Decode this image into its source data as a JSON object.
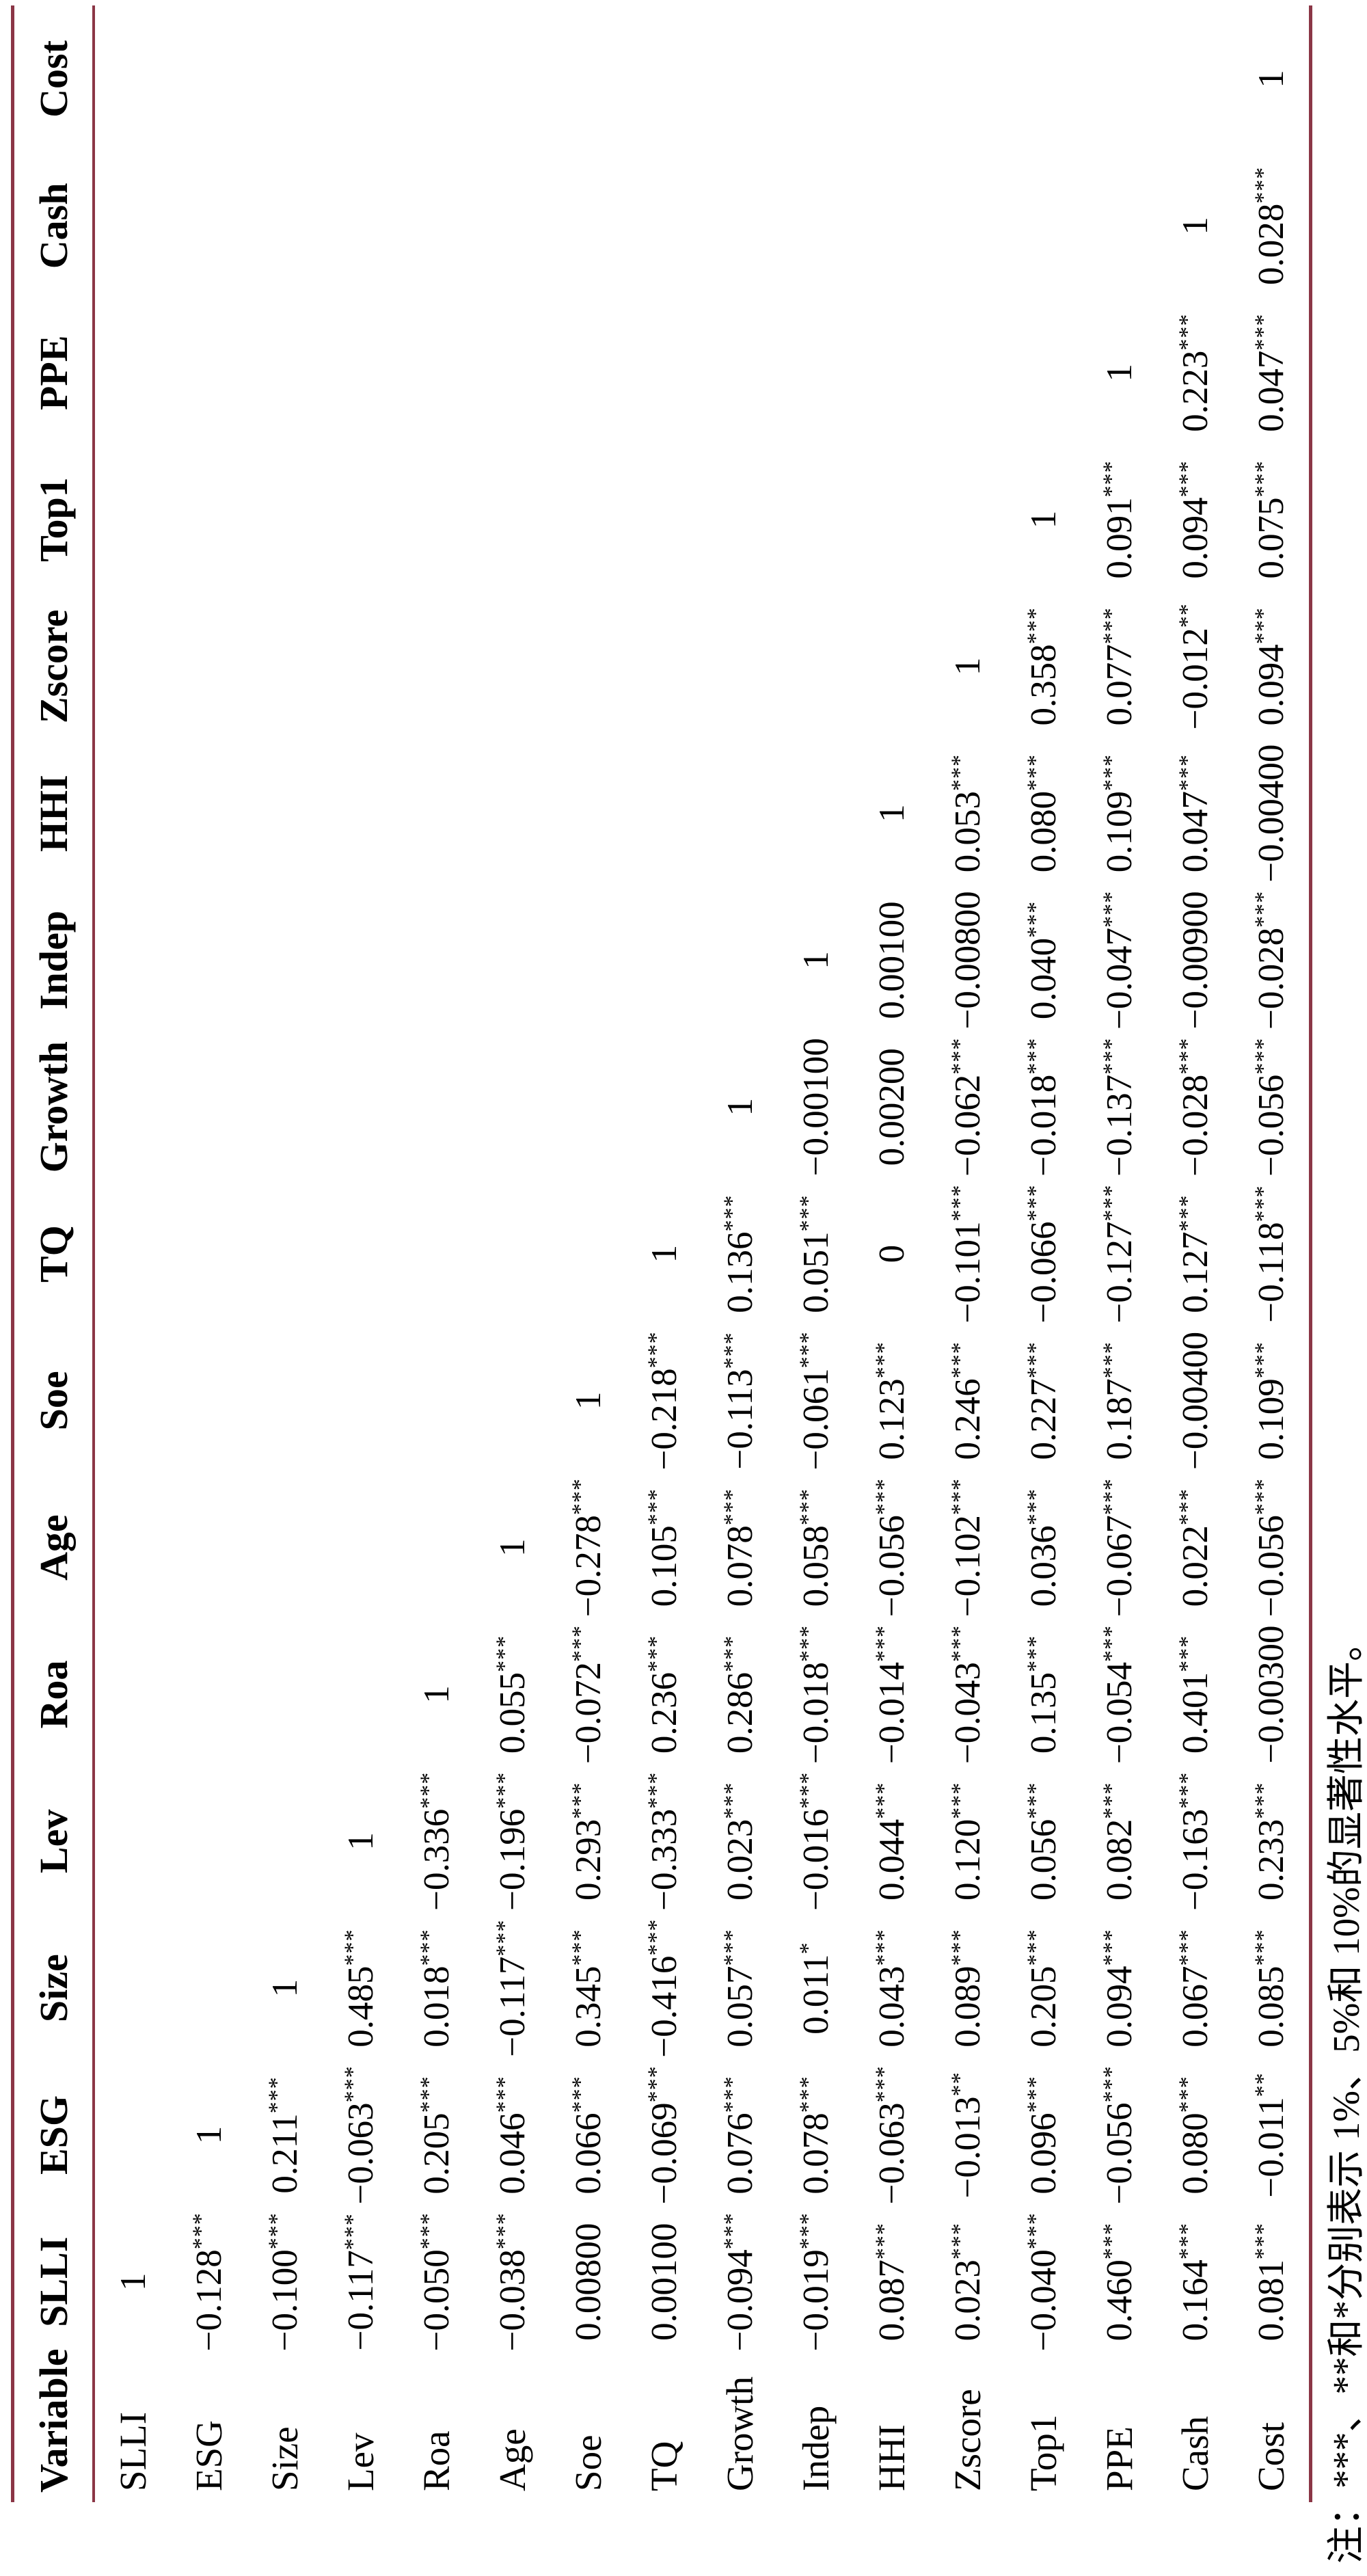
{
  "rule_color": "#8b3646",
  "note": {
    "text": "注：***、**和*分别表示 1%、5%和 10%的显著性水平。"
  },
  "table": {
    "columns": [
      "Variable",
      "SLLI",
      "ESG",
      "Size",
      "Lev",
      "Roa",
      "Age",
      "Soe",
      "TQ",
      "Growth",
      "Indep",
      "HHI",
      "Zscore",
      "Top1",
      "PPE",
      "Cash",
      "Cost"
    ],
    "rows": [
      {
        "label": "SLLI",
        "cells": [
          {
            "v": "1",
            "s": ""
          }
        ]
      },
      {
        "label": "ESG",
        "cells": [
          {
            "v": "−0.128",
            "s": "***"
          },
          {
            "v": "1",
            "s": ""
          }
        ]
      },
      {
        "label": "Size",
        "cells": [
          {
            "v": "−0.100",
            "s": "***"
          },
          {
            "v": "0.211",
            "s": "***"
          },
          {
            "v": "1",
            "s": ""
          }
        ]
      },
      {
        "label": "Lev",
        "cells": [
          {
            "v": "−0.117",
            "s": "***"
          },
          {
            "v": "−0.063",
            "s": "***"
          },
          {
            "v": "0.485",
            "s": "***"
          },
          {
            "v": "1",
            "s": ""
          }
        ]
      },
      {
        "label": "Roa",
        "cells": [
          {
            "v": "−0.050",
            "s": "***"
          },
          {
            "v": "0.205",
            "s": "***"
          },
          {
            "v": "0.018",
            "s": "***"
          },
          {
            "v": "−0.336",
            "s": "***"
          },
          {
            "v": "1",
            "s": ""
          }
        ]
      },
      {
        "label": "Age",
        "cells": [
          {
            "v": "−0.038",
            "s": "***"
          },
          {
            "v": "0.046",
            "s": "***"
          },
          {
            "v": "−0.117",
            "s": "***"
          },
          {
            "v": "−0.196",
            "s": "***"
          },
          {
            "v": "0.055",
            "s": "***"
          },
          {
            "v": "1",
            "s": ""
          }
        ]
      },
      {
        "label": "Soe",
        "cells": [
          {
            "v": "0.00800",
            "s": ""
          },
          {
            "v": "0.066",
            "s": "***"
          },
          {
            "v": "0.345",
            "s": "***"
          },
          {
            "v": "0.293",
            "s": "***"
          },
          {
            "v": "−0.072",
            "s": "***"
          },
          {
            "v": "−0.278",
            "s": "***"
          },
          {
            "v": "1",
            "s": ""
          }
        ]
      },
      {
        "label": "TQ",
        "cells": [
          {
            "v": "0.00100",
            "s": ""
          },
          {
            "v": "−0.069",
            "s": "***"
          },
          {
            "v": "−0.416",
            "s": "***"
          },
          {
            "v": "−0.333",
            "s": "***"
          },
          {
            "v": "0.236",
            "s": "***"
          },
          {
            "v": "0.105",
            "s": "***"
          },
          {
            "v": "−0.218",
            "s": "***"
          },
          {
            "v": "1",
            "s": ""
          }
        ]
      },
      {
        "label": "Growth",
        "cells": [
          {
            "v": "−0.094",
            "s": "***"
          },
          {
            "v": "0.076",
            "s": "***"
          },
          {
            "v": "0.057",
            "s": "***"
          },
          {
            "v": "0.023",
            "s": "***"
          },
          {
            "v": "0.286",
            "s": "***"
          },
          {
            "v": "0.078",
            "s": "***"
          },
          {
            "v": "−0.113",
            "s": "***"
          },
          {
            "v": "0.136",
            "s": "***"
          },
          {
            "v": "1",
            "s": ""
          }
        ]
      },
      {
        "label": "Indep",
        "cells": [
          {
            "v": "−0.019",
            "s": "***"
          },
          {
            "v": "0.078",
            "s": "***"
          },
          {
            "v": "0.011",
            "s": "*"
          },
          {
            "v": "−0.016",
            "s": "***"
          },
          {
            "v": "−0.018",
            "s": "***"
          },
          {
            "v": "0.058",
            "s": "***"
          },
          {
            "v": "−0.061",
            "s": "***"
          },
          {
            "v": "0.051",
            "s": "***"
          },
          {
            "v": "−0.00100",
            "s": ""
          },
          {
            "v": "1",
            "s": ""
          }
        ]
      },
      {
        "label": "HHI",
        "cells": [
          {
            "v": "0.087",
            "s": "***"
          },
          {
            "v": "−0.063",
            "s": "***"
          },
          {
            "v": "0.043",
            "s": "***"
          },
          {
            "v": "0.044",
            "s": "***"
          },
          {
            "v": "−0.014",
            "s": "***"
          },
          {
            "v": "−0.056",
            "s": "***"
          },
          {
            "v": "0.123",
            "s": "***"
          },
          {
            "v": "0",
            "s": ""
          },
          {
            "v": "0.00200",
            "s": ""
          },
          {
            "v": "0.00100",
            "s": ""
          },
          {
            "v": "1",
            "s": ""
          }
        ]
      },
      {
        "label": "Zscore",
        "cells": [
          {
            "v": "0.023",
            "s": "***"
          },
          {
            "v": "−0.013",
            "s": "**"
          },
          {
            "v": "0.089",
            "s": "***"
          },
          {
            "v": "0.120",
            "s": "***"
          },
          {
            "v": "−0.043",
            "s": "***"
          },
          {
            "v": "−0.102",
            "s": "***"
          },
          {
            "v": "0.246",
            "s": "***"
          },
          {
            "v": "−0.101",
            "s": "***"
          },
          {
            "v": "−0.062",
            "s": "***"
          },
          {
            "v": "−0.00800",
            "s": ""
          },
          {
            "v": "0.053",
            "s": "***"
          },
          {
            "v": "1",
            "s": ""
          }
        ]
      },
      {
        "label": "Top1",
        "cells": [
          {
            "v": "−0.040",
            "s": "***"
          },
          {
            "v": "0.096",
            "s": "***"
          },
          {
            "v": "0.205",
            "s": "***"
          },
          {
            "v": "0.056",
            "s": "***"
          },
          {
            "v": "0.135",
            "s": "***"
          },
          {
            "v": "0.036",
            "s": "***"
          },
          {
            "v": "0.227",
            "s": "***"
          },
          {
            "v": "−0.066",
            "s": "***"
          },
          {
            "v": "−0.018",
            "s": "***"
          },
          {
            "v": "0.040",
            "s": "***"
          },
          {
            "v": "0.080",
            "s": "***"
          },
          {
            "v": "0.358",
            "s": "***"
          },
          {
            "v": "1",
            "s": ""
          }
        ]
      },
      {
        "label": "PPE",
        "cells": [
          {
            "v": "0.460",
            "s": "***"
          },
          {
            "v": "−0.056",
            "s": "***"
          },
          {
            "v": "0.094",
            "s": "***"
          },
          {
            "v": "0.082",
            "s": "***"
          },
          {
            "v": "−0.054",
            "s": "***"
          },
          {
            "v": "−0.067",
            "s": "***"
          },
          {
            "v": "0.187",
            "s": "***"
          },
          {
            "v": "−0.127",
            "s": "***"
          },
          {
            "v": "−0.137",
            "s": "***"
          },
          {
            "v": "−0.047",
            "s": "***"
          },
          {
            "v": "0.109",
            "s": "***"
          },
          {
            "v": "0.077",
            "s": "***"
          },
          {
            "v": "0.091",
            "s": "***"
          },
          {
            "v": "1",
            "s": ""
          }
        ]
      },
      {
        "label": "Cash",
        "cells": [
          {
            "v": "0.164",
            "s": "***"
          },
          {
            "v": "0.080",
            "s": "***"
          },
          {
            "v": "0.067",
            "s": "***"
          },
          {
            "v": "−0.163",
            "s": "***"
          },
          {
            "v": "0.401",
            "s": "***"
          },
          {
            "v": "0.022",
            "s": "***"
          },
          {
            "v": "−0.00400",
            "s": ""
          },
          {
            "v": "0.127",
            "s": "***"
          },
          {
            "v": "−0.028",
            "s": "***"
          },
          {
            "v": "−0.00900",
            "s": ""
          },
          {
            "v": "0.047",
            "s": "***"
          },
          {
            "v": "−0.012",
            "s": "**"
          },
          {
            "v": "0.094",
            "s": "***"
          },
          {
            "v": "0.223",
            "s": "***"
          },
          {
            "v": "1",
            "s": ""
          }
        ]
      },
      {
        "label": "Cost",
        "cells": [
          {
            "v": "0.081",
            "s": "***"
          },
          {
            "v": "−0.011",
            "s": "**"
          },
          {
            "v": "0.085",
            "s": "***"
          },
          {
            "v": "0.233",
            "s": "***"
          },
          {
            "v": "−0.00300",
            "s": ""
          },
          {
            "v": "−0.056",
            "s": "***"
          },
          {
            "v": "0.109",
            "s": "***"
          },
          {
            "v": "−0.118",
            "s": "***"
          },
          {
            "v": "−0.056",
            "s": "***"
          },
          {
            "v": "−0.028",
            "s": "***"
          },
          {
            "v": "−0.00400",
            "s": ""
          },
          {
            "v": "0.094",
            "s": "***"
          },
          {
            "v": "0.075",
            "s": "***"
          },
          {
            "v": "0.047",
            "s": "***"
          },
          {
            "v": "0.028",
            "s": "***"
          },
          {
            "v": "1",
            "s": ""
          }
        ]
      }
    ]
  }
}
